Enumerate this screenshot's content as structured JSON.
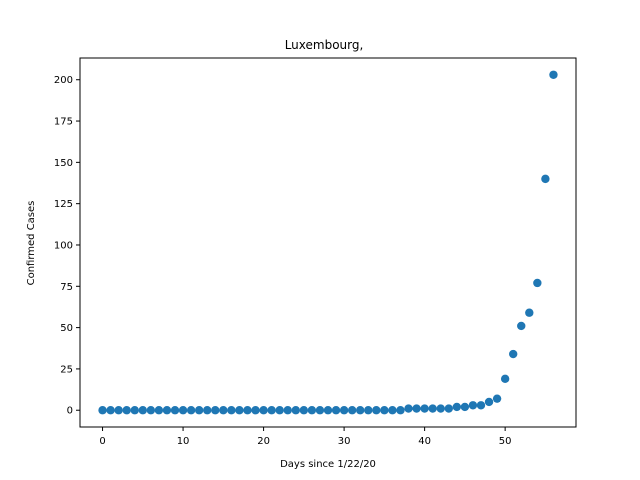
{
  "chart_data": {
    "type": "scatter",
    "title": "Luxembourg,",
    "xlabel": "Days since 1/22/20",
    "ylabel": "Confirmed Cases",
    "xlim": [
      -2.8,
      58.8
    ],
    "ylim": [
      -10.15,
      213.15
    ],
    "xticks": [
      0,
      10,
      20,
      30,
      40,
      50
    ],
    "yticks": [
      0,
      25,
      50,
      75,
      100,
      125,
      150,
      175,
      200
    ],
    "grid": false,
    "color": "#1f77b4",
    "series": [
      {
        "x": [
          0,
          1,
          2,
          3,
          4,
          5,
          6,
          7,
          8,
          9,
          10,
          11,
          12,
          13,
          14,
          15,
          16,
          17,
          18,
          19,
          20,
          21,
          22,
          23,
          24,
          25,
          26,
          27,
          28,
          29,
          30,
          31,
          32,
          33,
          34,
          35,
          36,
          37,
          38,
          39,
          40,
          41,
          42,
          43,
          44,
          45,
          46,
          47,
          48,
          49,
          50,
          51,
          52,
          53,
          54,
          55,
          56
        ],
        "y": [
          0,
          0,
          0,
          0,
          0,
          0,
          0,
          0,
          0,
          0,
          0,
          0,
          0,
          0,
          0,
          0,
          0,
          0,
          0,
          0,
          0,
          0,
          0,
          0,
          0,
          0,
          0,
          0,
          0,
          0,
          0,
          0,
          0,
          0,
          0,
          0,
          0,
          0,
          1,
          1,
          1,
          1,
          1,
          1,
          2,
          2,
          3,
          3,
          5,
          7,
          19,
          34,
          51,
          59,
          77,
          140,
          203
        ]
      }
    ]
  }
}
